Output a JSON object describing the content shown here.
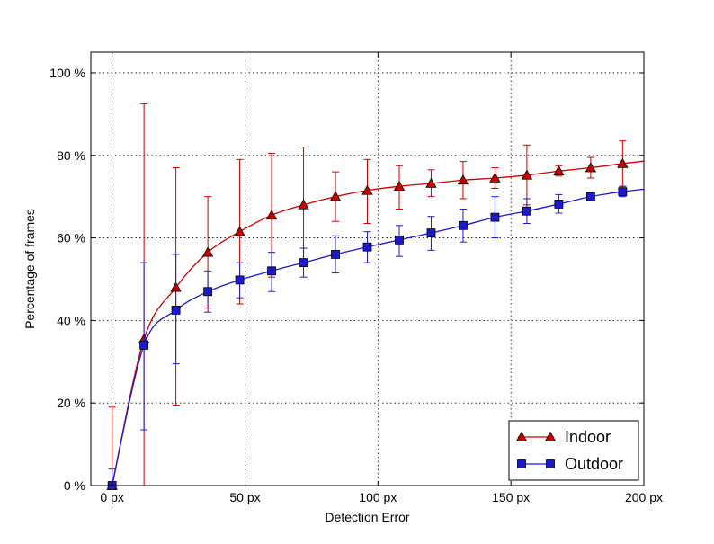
{
  "chart_data": {
    "type": "line",
    "title": "",
    "xlabel": "Detection Error",
    "ylabel": "Percentage of frames",
    "xlim": [
      -8,
      200
    ],
    "ylim": [
      0,
      105
    ],
    "x_ticks": [
      {
        "value": 0,
        "label": "0 px"
      },
      {
        "value": 50,
        "label": "50 px"
      },
      {
        "value": 100,
        "label": "100 px"
      },
      {
        "value": 150,
        "label": "150 px"
      },
      {
        "value": 200,
        "label": "200 px"
      }
    ],
    "y_ticks": [
      {
        "value": 0,
        "label": "0 %"
      },
      {
        "value": 20,
        "label": "20 %"
      },
      {
        "value": 40,
        "label": "40 %"
      },
      {
        "value": 60,
        "label": "60 %"
      },
      {
        "value": 80,
        "label": "80 %"
      },
      {
        "value": 100,
        "label": "100 %"
      }
    ],
    "grid": true,
    "legend_position": "bottom-right",
    "series": [
      {
        "name": "Indoor",
        "color": "#cc0000",
        "marker": "triangle",
        "points": [
          {
            "x": 0,
            "y": 0,
            "lo": 0,
            "hi": 19
          },
          {
            "x": 12,
            "y": 35.5,
            "lo": 0,
            "hi": 92.5
          },
          {
            "x": 24,
            "y": 48,
            "lo": 19.5,
            "hi": 77
          },
          {
            "x": 36,
            "y": 56.5,
            "lo": 43,
            "hi": 70
          },
          {
            "x": 48,
            "y": 61.5,
            "lo": 44,
            "hi": 79
          },
          {
            "x": 60,
            "y": 65.5,
            "lo": 50.5,
            "hi": 80.5
          },
          {
            "x": 72,
            "y": 68,
            "lo": 54,
            "hi": 82
          },
          {
            "x": 84,
            "y": 70,
            "lo": 64,
            "hi": 76
          },
          {
            "x": 96,
            "y": 71.5,
            "lo": 63.5,
            "hi": 79
          },
          {
            "x": 108,
            "y": 72.5,
            "lo": 67,
            "hi": 77.5
          },
          {
            "x": 120,
            "y": 73.2,
            "lo": 70,
            "hi": 76.5
          },
          {
            "x": 132,
            "y": 74,
            "lo": 69.5,
            "hi": 78.5
          },
          {
            "x": 144,
            "y": 74.5,
            "lo": 72,
            "hi": 77
          },
          {
            "x": 156,
            "y": 75.2,
            "lo": 68,
            "hi": 82.5
          },
          {
            "x": 168,
            "y": 76.2,
            "lo": 75,
            "hi": 77.5
          },
          {
            "x": 180,
            "y": 77,
            "lo": 74.5,
            "hi": 79.5
          },
          {
            "x": 192,
            "y": 78,
            "lo": 72.5,
            "hi": 83.5
          }
        ],
        "curve_end": {
          "x": 200,
          "y": 78.6
        }
      },
      {
        "name": "Outdoor",
        "color": "#1a1acc",
        "marker": "square",
        "points": [
          {
            "x": 0,
            "y": 0,
            "lo": 0,
            "hi": 4
          },
          {
            "x": 12,
            "y": 34,
            "lo": 13.5,
            "hi": 54
          },
          {
            "x": 24,
            "y": 42.5,
            "lo": 29.5,
            "hi": 56
          },
          {
            "x": 36,
            "y": 47,
            "lo": 42,
            "hi": 52
          },
          {
            "x": 48,
            "y": 49.8,
            "lo": 45.5,
            "hi": 54
          },
          {
            "x": 60,
            "y": 52,
            "lo": 47,
            "hi": 56.5
          },
          {
            "x": 72,
            "y": 54,
            "lo": 50.5,
            "hi": 57.5
          },
          {
            "x": 84,
            "y": 56,
            "lo": 51.5,
            "hi": 60.5
          },
          {
            "x": 96,
            "y": 57.8,
            "lo": 54,
            "hi": 61.5
          },
          {
            "x": 108,
            "y": 59.5,
            "lo": 55.5,
            "hi": 63
          },
          {
            "x": 120,
            "y": 61.2,
            "lo": 57,
            "hi": 65.2
          },
          {
            "x": 132,
            "y": 63,
            "lo": 59,
            "hi": 67
          },
          {
            "x": 144,
            "y": 65,
            "lo": 60,
            "hi": 70
          },
          {
            "x": 156,
            "y": 66.5,
            "lo": 63.5,
            "hi": 69.5
          },
          {
            "x": 168,
            "y": 68.2,
            "lo": 66,
            "hi": 70.5
          },
          {
            "x": 180,
            "y": 70,
            "lo": 69,
            "hi": 71
          },
          {
            "x": 192,
            "y": 71.2,
            "lo": 70,
            "hi": 72.5
          }
        ],
        "curve_end": {
          "x": 200,
          "y": 71.8
        }
      }
    ]
  }
}
